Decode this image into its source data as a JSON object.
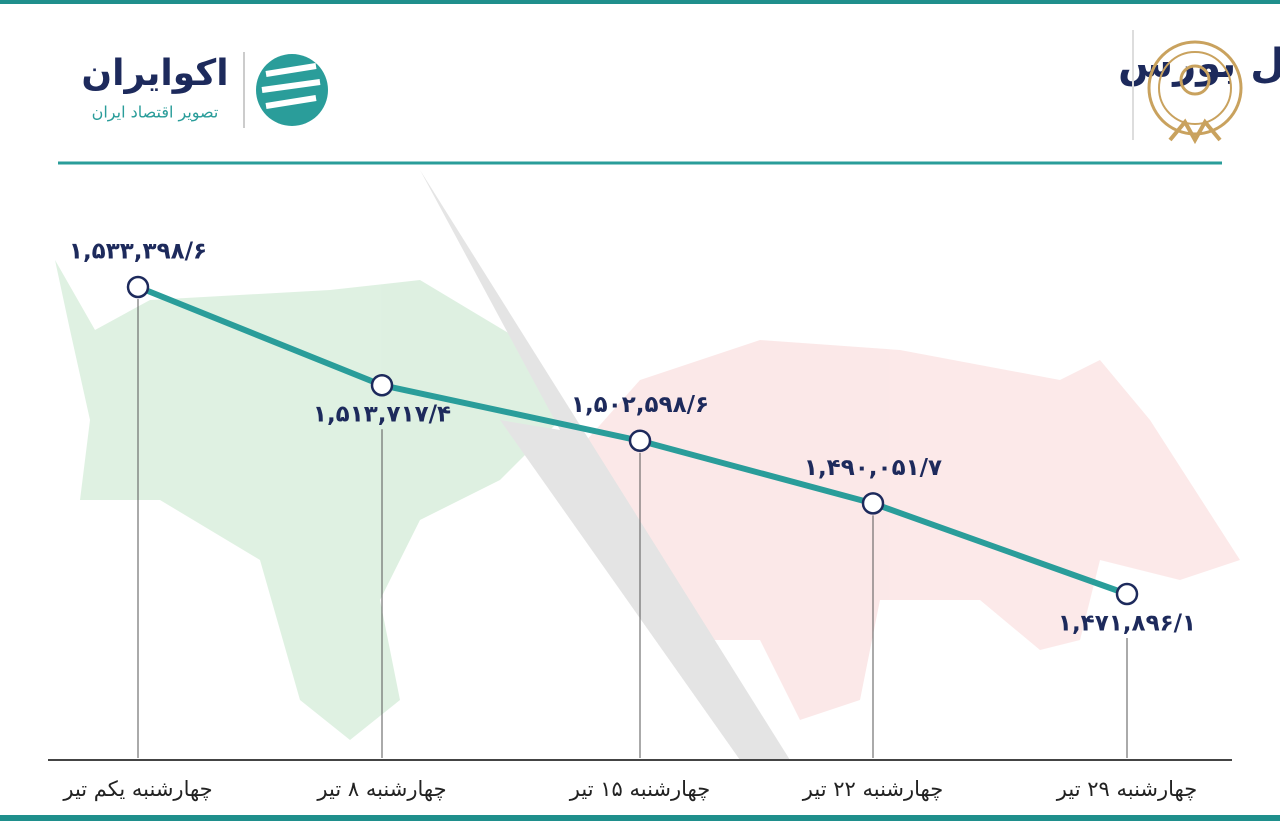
{
  "brand": {
    "name": "اکوایران",
    "tagline": "تصویر اقتصاد ایران"
  },
  "chart_data": {
    "type": "line",
    "title": "روند ماه شاخص کل بورس",
    "categories": [
      "چهارشنبه یکم تیر",
      "چهارشنبه ۸ تیر",
      "چهارشنبه ۱۵ تیر",
      "چهارشنبه ۲۲ تیر",
      "چهارشنبه ۲۹ تیر"
    ],
    "values": [
      1533398.6,
      1513717.4,
      1502598.6,
      1490051.7,
      1471896.1
    ],
    "value_labels": [
      "۱,۵۳۳,۳۹۸/۶",
      "۱,۵۱۳,۷۱۷/۴",
      "۱,۵۰۲,۵۹۸/۶",
      "۱,۴۹۰,۰۵۱/۷",
      "۱,۴۷۱,۸۹۶/۱"
    ],
    "color": "#2a9d9a"
  }
}
